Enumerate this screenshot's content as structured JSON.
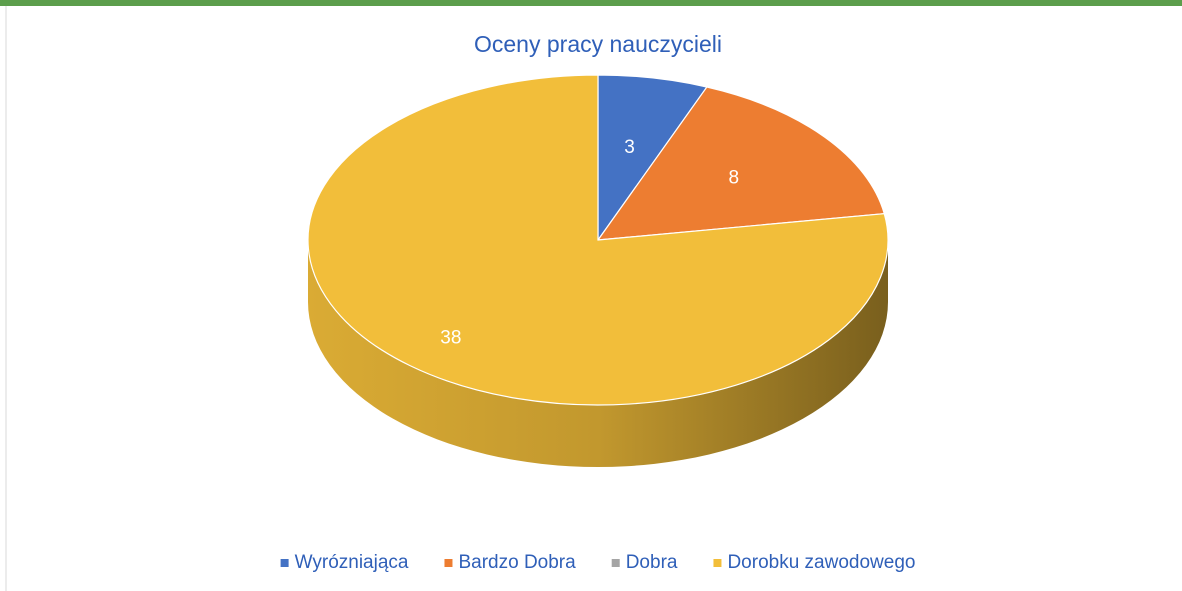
{
  "chart_data": {
    "type": "pie",
    "title": "Oceny pracy nauczycieli",
    "categories": [
      "Wyrózniająca",
      "Bardzo Dobra",
      "Dobra",
      "Dorobku zawodowego"
    ],
    "values": [
      3,
      8,
      0,
      38
    ],
    "colors": [
      "#4472c4",
      "#ed7d31",
      "#a5a5a5",
      "#f2be3a"
    ],
    "data_labels": [
      true,
      true,
      false,
      true
    ],
    "legend": "bottom"
  }
}
